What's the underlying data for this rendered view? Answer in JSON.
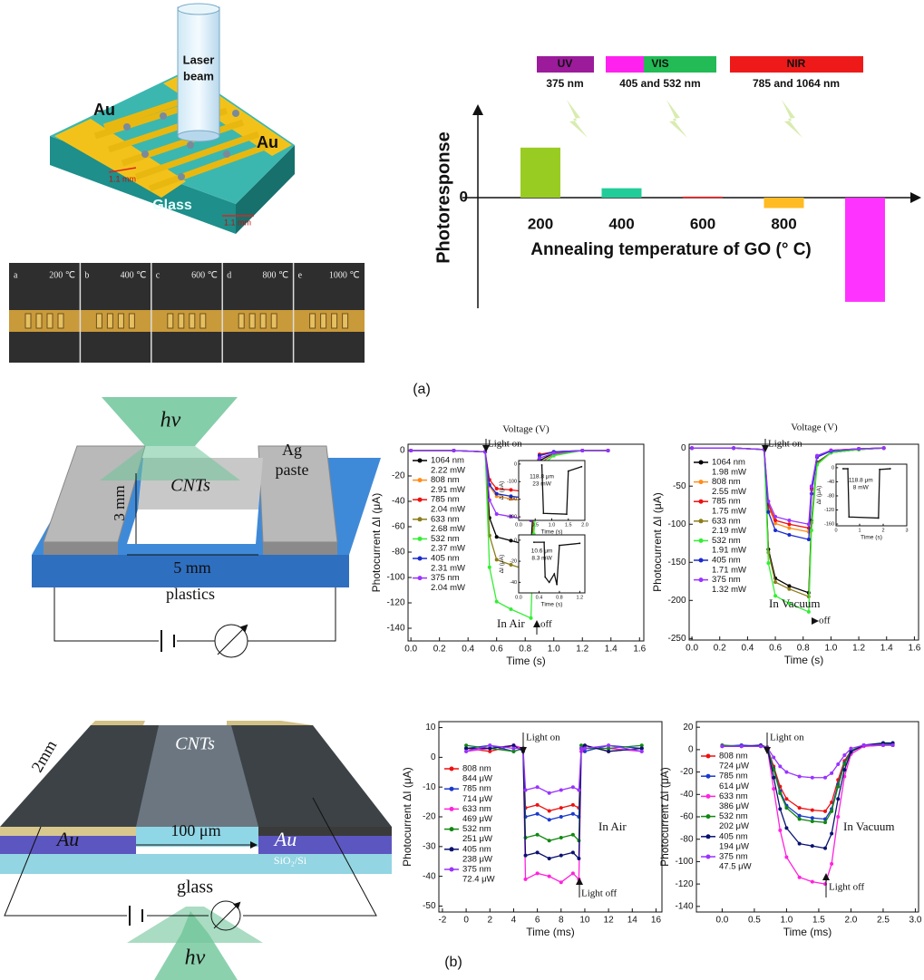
{
  "figure_labels": [
    "(a)",
    "(b)"
  ],
  "diagram_a": {
    "laser": [
      "Laser",
      "beam"
    ],
    "au_left": "Au",
    "au_right": "Au",
    "glass": "Glass",
    "dim1": "1.1 mm",
    "dim2": "1.1 mm"
  },
  "photos": [
    {
      "letter": "a",
      "temp": "200 ℃"
    },
    {
      "letter": "b",
      "temp": "400 ℃"
    },
    {
      "letter": "c",
      "temp": "600 ℃"
    },
    {
      "letter": "d",
      "temp": "800 ℃"
    },
    {
      "letter": "e",
      "temp": "1000 ℃"
    }
  ],
  "spectrum": [
    {
      "band": "UV",
      "wavelengths": "375 nm"
    },
    {
      "band": "VIS",
      "wavelengths": "405 and 532 nm"
    },
    {
      "band": "NIR",
      "wavelengths": "785 and 1064 nm"
    }
  ],
  "diagram_b1": {
    "hv": "hν",
    "cnts": "CNTs",
    "dim_v": "3 mm",
    "dim_h": "5 mm",
    "electrode": [
      "Ag",
      "paste"
    ],
    "substrate": "plastics"
  },
  "diagram_b2": {
    "cnts": "CNTs",
    "au_left": "Au",
    "au_right": "Au",
    "gap": "100 μm",
    "layer": "SiO₂/Si",
    "glass": "glass",
    "length": "2mm",
    "hv": "hν"
  },
  "chart_data": [
    {
      "type": "bar",
      "xlabel": "Annealing temperature of GO (° C)",
      "ylabel": "Photoresponse",
      "categories": [
        "200",
        "400",
        "600",
        "800",
        "1000"
      ],
      "values": [
        2.4,
        0.45,
        0.05,
        -0.5,
        -5
      ],
      "colors": [
        "#99cc22",
        "#22cc99",
        "#ee2222",
        "#ffbb22",
        "#ff33ff"
      ],
      "ylim": [
        -5.3,
        4.35
      ],
      "yticks": [
        0
      ]
    },
    {
      "type": "line",
      "xlabel": "Time (s)",
      "ylabel": "Photocurrent ΔI (μA)",
      "annotations": [
        "Voltage (V)",
        "Light on",
        "off",
        "In Air"
      ],
      "xlim": [
        -0.02,
        1.63
      ],
      "ylim": [
        -150,
        5
      ],
      "xticks": [
        {
          "value": 0,
          "label": "0.0"
        },
        0.2,
        0.4,
        0.6,
        0.8,
        {
          "value": 1,
          "label": "1.0"
        },
        1.2,
        1.4,
        1.6
      ],
      "yticks": [
        -140,
        -120,
        -100,
        -80,
        -60,
        -40,
        -20,
        0
      ],
      "x": [
        0,
        0.3,
        0.52,
        0.55,
        0.6,
        0.7,
        0.84,
        0.86,
        0.9,
        1.0,
        1.2,
        1.38
      ],
      "series": [
        {
          "name": "1064 nm",
          "power": "2.22 mW",
          "color": "#000000",
          "values": [
            0,
            0,
            -1,
            -53,
            -68,
            -71,
            -75,
            -38,
            -8,
            -2,
            0,
            0
          ]
        },
        {
          "name": "808 nm",
          "power": "2.91 mW",
          "color": "#ff8c1a",
          "values": [
            0,
            0,
            -1,
            -28,
            -36,
            -38,
            -40,
            -20,
            -4,
            -1,
            0,
            0
          ]
        },
        {
          "name": "785 nm",
          "power": "2.04 mW",
          "color": "#ee1111",
          "values": [
            0,
            0,
            -1,
            -23,
            -30,
            -31,
            -33,
            -17,
            -3,
            -1,
            0,
            0
          ]
        },
        {
          "name": "633 nm",
          "power": "2.68 mW",
          "color": "#8b7d1a",
          "values": [
            0,
            0,
            -1,
            -67,
            -86,
            -90,
            -95,
            -48,
            -10,
            -3,
            0,
            0
          ]
        },
        {
          "name": "532 nm",
          "power": "2.37 mW",
          "color": "#33ee33",
          "values": [
            0,
            0,
            -1,
            -92,
            -119,
            -125,
            -132,
            -66,
            -13,
            -4,
            0,
            0
          ]
        },
        {
          "name": "405 nm",
          "power": "2.31 mW",
          "color": "#1a2acc",
          "values": [
            0,
            0,
            -1,
            -27,
            -34,
            -36,
            -38,
            -19,
            -4,
            -1,
            0,
            0
          ]
        },
        {
          "name": "375 nm",
          "power": "2.04 mW",
          "color": "#9933ff",
          "values": [
            0,
            0,
            -1,
            -39,
            -50,
            -52,
            -55,
            -28,
            -6,
            -2,
            0,
            0
          ]
        }
      ],
      "insets": [
        {
          "xlabel": "Time (s)",
          "ylabel": "ΔI (μA)",
          "annotations": [
            "118.8 μm",
            "23 mW"
          ],
          "xlim": [
            0,
            2
          ],
          "ylim": [
            -320,
            20
          ],
          "xticks": [
            {
              "value": 0,
              "label": "0.0"
            },
            0.5,
            {
              "value": 1,
              "label": "1.0"
            },
            1.5,
            {
              "value": 2,
              "label": "2.0"
            }
          ],
          "yticks": [
            -300,
            -200,
            -100,
            0
          ],
          "x": [
            0.7,
            0.75,
            1.45,
            1.5,
            1.9
          ],
          "values": [
            -5,
            -280,
            -285,
            -40,
            -15
          ]
        },
        {
          "xlabel": "Time (s)",
          "ylabel": "ΔI (μA)",
          "annotations": [
            "10.6 μm",
            "8.3 mW"
          ],
          "xlim": [
            0,
            1.3
          ],
          "ylim": [
            -50,
            5
          ],
          "xticks": [
            {
              "value": 0,
              "label": "0.0"
            },
            0.4,
            0.8,
            1.2
          ],
          "yticks": [
            -40,
            -20,
            0
          ],
          "x": [
            0.3,
            0.5,
            0.52,
            0.6,
            0.7,
            0.75,
            0.8,
            1.2
          ],
          "values": [
            -2,
            -2,
            -35,
            -40,
            -32,
            -42,
            -5,
            -3
          ]
        }
      ]
    },
    {
      "type": "line",
      "xlabel": "Time (s)",
      "ylabel": "Photocurrent ΔI (μA)",
      "annotations": [
        "Voltage (V)",
        "Light on",
        "off",
        "In Vacuum"
      ],
      "xlim": [
        -0.02,
        1.63
      ],
      "ylim": [
        -252,
        5
      ],
      "xticks": [
        {
          "value": 0,
          "label": "0.0"
        },
        0.2,
        0.4,
        0.6,
        0.8,
        {
          "value": 1,
          "label": "1.0"
        },
        1.2,
        1.4,
        1.6
      ],
      "yticks": [
        -250,
        -200,
        -150,
        -100,
        -50,
        0
      ],
      "x": [
        0,
        0.3,
        0.52,
        0.55,
        0.6,
        0.7,
        0.84,
        0.86,
        0.9,
        1.0,
        1.2,
        1.38
      ],
      "series": [
        {
          "name": "1064 nm",
          "power": "1.98 mW",
          "color": "#000000",
          "values": [
            0,
            0,
            -2,
            -133,
            -171,
            -181,
            -190,
            -95,
            -19,
            -6,
            -2,
            0
          ]
        },
        {
          "name": "808 nm",
          "power": "2.55 mW",
          "color": "#ff8c1a",
          "values": [
            0,
            0,
            -2,
            -77,
            -99,
            -105,
            -110,
            -55,
            -11,
            -3,
            -1,
            0
          ]
        },
        {
          "name": "785 nm",
          "power": "1.75 mW",
          "color": "#ee1111",
          "values": [
            0,
            0,
            -2,
            -74,
            -95,
            -100,
            -105,
            -53,
            -11,
            -3,
            -1,
            0
          ]
        },
        {
          "name": "633 nm",
          "power": "2.19 mW",
          "color": "#8b7d1a",
          "values": [
            0,
            0,
            -2,
            -137,
            -176,
            -185,
            -195,
            -98,
            -20,
            -6,
            -2,
            0
          ]
        },
        {
          "name": "532 nm",
          "power": "1.91 mW",
          "color": "#33ee33",
          "values": [
            0,
            0,
            -2,
            -151,
            -194,
            -204,
            -215,
            -108,
            -22,
            -6,
            -2,
            0
          ]
        },
        {
          "name": "405 nm",
          "power": "1.71 mW",
          "color": "#1a2acc",
          "values": [
            0,
            0,
            -2,
            -84,
            -108,
            -114,
            -120,
            -60,
            -12,
            -4,
            -1,
            0
          ]
        },
        {
          "name": "375 nm",
          "power": "1.32 mW",
          "color": "#9933ff",
          "values": [
            0,
            0,
            -2,
            -70,
            -90,
            -95,
            -100,
            -50,
            -10,
            -3,
            -1,
            0
          ]
        }
      ],
      "insets": [
        {
          "xlabel": "Time (s)",
          "ylabel": "ΔI (μA)",
          "annotations": [
            "118.8 μm",
            "8 mW"
          ],
          "xlim": [
            0,
            3
          ],
          "ylim": [
            -165,
            10
          ],
          "xticks": [
            0,
            1,
            2,
            3
          ],
          "yticks": [
            -160,
            -120,
            -80,
            -40,
            0
          ],
          "x": [
            0.3,
            0.5,
            0.55,
            1.8,
            1.85,
            2.3
          ],
          "values": [
            -3,
            -3,
            -140,
            -143,
            -5,
            -3
          ]
        }
      ]
    },
    {
      "type": "line",
      "xlabel": "Time (ms)",
      "ylabel": "Photocurrent ΔI (μA)",
      "annotations": [
        "Light on",
        "Light off",
        "In Air"
      ],
      "xlim": [
        -2.3,
        16.5
      ],
      "ylim": [
        -52,
        12
      ],
      "xticks": [
        -2,
        0,
        2,
        4,
        6,
        8,
        10,
        12,
        14,
        16
      ],
      "yticks": [
        -50,
        -40,
        -30,
        -20,
        -10,
        0,
        10
      ],
      "x": [
        0,
        2,
        4,
        4.8,
        5,
        6,
        7,
        8,
        9,
        9.5,
        9.7,
        10,
        12,
        14.8
      ],
      "series": [
        {
          "name": "808 nm",
          "power": "844 μW",
          "color": "#ee1111",
          "values": [
            3,
            2,
            4,
            3,
            -17,
            -16,
            -18,
            -17,
            -16,
            -17,
            3,
            4,
            2,
            3
          ]
        },
        {
          "name": "785 nm",
          "power": "714 μW",
          "color": "#1a3acc",
          "values": [
            3,
            4,
            2,
            3,
            -20,
            -19,
            -21,
            -20,
            -19,
            -20,
            3,
            2,
            4,
            3
          ]
        },
        {
          "name": "633 nm",
          "power": "469 μW",
          "color": "#ff22dd",
          "values": [
            2,
            3,
            4,
            3,
            -41,
            -39,
            -40,
            -42,
            -39,
            -41,
            2,
            3,
            3,
            2
          ]
        },
        {
          "name": "532 nm",
          "power": "251 μW",
          "color": "#118811",
          "values": [
            4,
            3,
            2,
            3,
            -27,
            -26,
            -28,
            -27,
            -26,
            -28,
            4,
            3,
            3,
            4
          ]
        },
        {
          "name": "405 nm",
          "power": "238 μW",
          "color": "#0a1270",
          "values": [
            3,
            3,
            4,
            2,
            -33,
            -32,
            -34,
            -33,
            -32,
            -34,
            3,
            4,
            2,
            3
          ]
        },
        {
          "name": "375 nm",
          "power": "72.4 μW",
          "color": "#9933ff",
          "values": [
            2,
            4,
            3,
            3,
            -11,
            -10,
            -12,
            -11,
            -10,
            -11,
            3,
            3,
            4,
            2
          ]
        }
      ]
    },
    {
      "type": "line",
      "xlabel": "Time (ms)",
      "ylabel": "Photocurrent ΔI (μA)",
      "annotations": [
        "Light on",
        "Light off",
        "In Vacuum"
      ],
      "xlim": [
        -0.4,
        3.05
      ],
      "ylim": [
        -145,
        25
      ],
      "xticks": [
        {
          "value": 0,
          "label": "0.0"
        },
        0.5,
        {
          "value": 1,
          "label": "1.0"
        },
        1.5,
        {
          "value": 2,
          "label": "2.0"
        },
        2.5,
        {
          "value": 3,
          "label": "3.0"
        }
      ],
      "yticks": [
        -140,
        -120,
        -100,
        -80,
        -60,
        -40,
        -20,
        0,
        20
      ],
      "x": [
        0,
        0.3,
        0.6,
        0.7,
        0.8,
        0.9,
        1.0,
        1.2,
        1.4,
        1.6,
        1.7,
        1.8,
        1.9,
        2.0,
        2.2,
        2.5,
        2.65
      ],
      "series": [
        {
          "name": "808 nm",
          "power": "724 μW",
          "color": "#ee1111",
          "values": [
            3,
            3,
            3,
            2,
            -15,
            -33,
            -44,
            -52,
            -54,
            -55,
            -47,
            -27,
            -10,
            -1,
            3,
            4,
            4
          ]
        },
        {
          "name": "785 nm",
          "power": "614 μW",
          "color": "#1a3acc",
          "values": [
            3,
            4,
            3,
            2,
            -17,
            -37,
            -50,
            -59,
            -61,
            -62,
            -53,
            -31,
            -12,
            -1,
            4,
            5,
            5
          ]
        },
        {
          "name": "633 nm",
          "power": "386 μW",
          "color": "#ff22dd",
          "values": [
            3,
            3,
            3,
            2,
            -35,
            -72,
            -96,
            -114,
            -118,
            -120,
            -102,
            -60,
            -24,
            -4,
            3,
            4,
            4
          ]
        },
        {
          "name": "532 nm",
          "power": "202 μW",
          "color": "#118811",
          "values": [
            4,
            3,
            3,
            2,
            -18,
            -39,
            -52,
            -62,
            -64,
            -65,
            -55,
            -33,
            -13,
            -1,
            4,
            5,
            4
          ]
        },
        {
          "name": "405 nm",
          "power": "194 μW",
          "color": "#0a1270",
          "values": [
            3,
            3,
            4,
            2,
            -25,
            -53,
            -70,
            -84,
            -86,
            -88,
            -75,
            -44,
            -18,
            -2,
            4,
            6,
            6
          ]
        },
        {
          "name": "375 nm",
          "power": "47.5 μW",
          "color": "#9933ff",
          "values": [
            3,
            3,
            3,
            2,
            -7,
            -15,
            -20,
            -24,
            -25,
            -25,
            -21,
            -13,
            -5,
            1,
            4,
            4,
            4
          ]
        }
      ]
    }
  ]
}
